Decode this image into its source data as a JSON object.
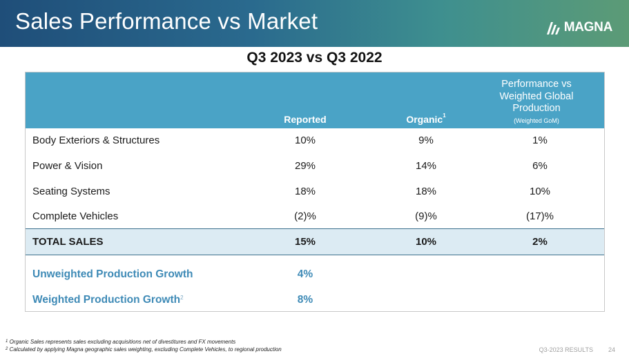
{
  "header": {
    "title": "Sales Performance vs Market",
    "logo_text": "MAGNA",
    "logo_icon": "magna-logo-icon"
  },
  "subtitle": "Q3 2023 vs Q3 2022",
  "table": {
    "columns": {
      "reported": "Reported",
      "organic": "Organic",
      "organic_footnote": "1",
      "performance_line1": "Performance vs",
      "performance_line2": "Weighted Global",
      "performance_line3": "Production",
      "performance_sub": "(Weighted GoM)"
    },
    "rows": [
      {
        "label": "Body Exteriors & Structures",
        "reported": "10%",
        "organic": "9%",
        "performance": "1%"
      },
      {
        "label": "Power & Vision",
        "reported": "29%",
        "organic": "14%",
        "performance": "6%"
      },
      {
        "label": "Seating Systems",
        "reported": "18%",
        "organic": "18%",
        "performance": "10%"
      },
      {
        "label": "Complete Vehicles",
        "reported": "(2)%",
        "organic": "(9)%",
        "performance": "(17)%"
      }
    ],
    "total": {
      "label": "TOTAL SALES",
      "reported": "15%",
      "organic": "10%",
      "performance": "2%"
    },
    "production": [
      {
        "label": "Unweighted Production Growth",
        "footnote": "",
        "value": "4%"
      },
      {
        "label": "Weighted Production Growth",
        "footnote": "2",
        "value": "8%"
      }
    ]
  },
  "footnotes": {
    "note1_mark": "1",
    "note1": "Organic Sales represents sales excluding acquisitions net of divestitures and FX movements",
    "note2_mark": "2",
    "note2": "Calculated by applying Magna geographic sales weighting, excluding Complete Vehicles, to regional production"
  },
  "footer": {
    "label": "Q3-2023 RESULTS",
    "page": "24"
  },
  "colors": {
    "header_start": "#1f4e79",
    "header_end": "#5c9b76",
    "table_header": "#4aa3c6",
    "total_row": "#dcebf3",
    "accent_text": "#3e8ab6"
  }
}
